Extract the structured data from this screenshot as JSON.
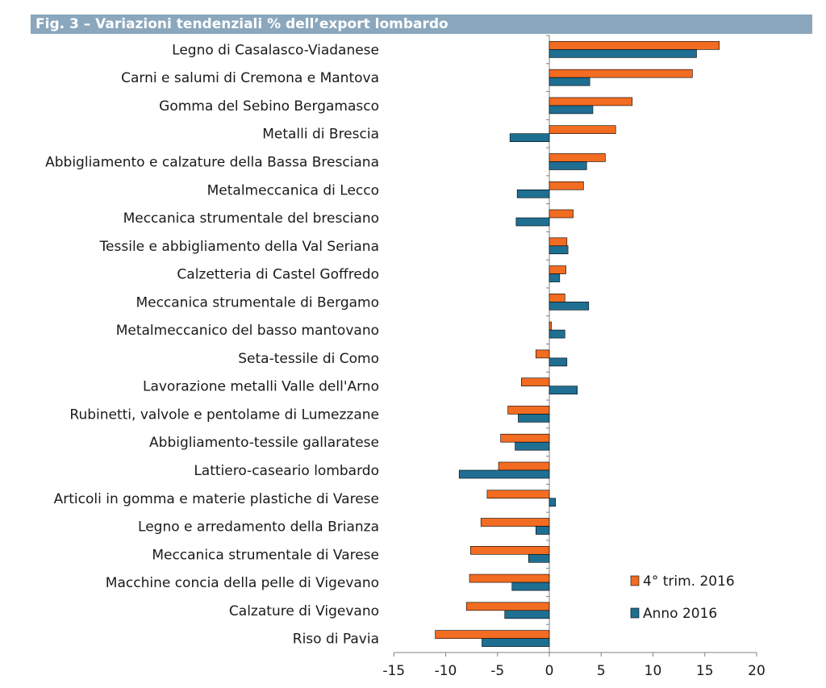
{
  "chart_data": {
    "type": "bar",
    "orientation": "horizontal",
    "title": "Fig. 3 – Variazioni tendenziali % dell’export lombardo",
    "categories": [
      "Legno di Casalasco-Viadanese",
      "Carni e salumi di Cremona e Mantova",
      "Gomma del Sebino Bergamasco",
      "Metalli di Brescia",
      "Abbigliamento e calzature della Bassa Bresciana",
      "Metalmeccanica di Lecco",
      "Meccanica strumentale del bresciano",
      "Tessile e abbigliamento della Val Seriana",
      "Calzetteria di Castel Goffredo",
      "Meccanica strumentale di Bergamo",
      "Metalmeccanico del basso mantovano",
      "Seta-tessile di Como",
      "Lavorazione metalli Valle dell'Arno",
      "Rubinetti, valvole e pentolame di Lumezzane",
      "Abbigliamento-tessile gallaratese",
      "Lattiero-caseario lombardo",
      "Articoli in gomma e materie plastiche di Varese",
      "Legno e arredamento della Brianza",
      "Meccanica strumentale di Varese",
      "Macchine concia della pelle di Vigevano",
      "Calzature di Vigevano",
      "Riso di Pavia"
    ],
    "series": [
      {
        "name": "4° trim. 2016",
        "color": "#f26c21",
        "values": [
          16.4,
          13.8,
          8.0,
          6.4,
          5.4,
          3.3,
          2.3,
          1.7,
          1.6,
          1.5,
          0.2,
          -1.3,
          -2.7,
          -4.0,
          -4.7,
          -4.9,
          -6.0,
          -6.6,
          -7.6,
          -7.7,
          -8.0,
          -11.0
        ]
      },
      {
        "name": "Anno 2016",
        "color": "#1f6f92",
        "values": [
          14.2,
          3.9,
          4.2,
          -3.8,
          3.6,
          -3.1,
          -3.2,
          1.8,
          1.0,
          3.8,
          1.5,
          1.7,
          2.7,
          -3.0,
          -3.3,
          -8.7,
          0.6,
          -1.3,
          -2.0,
          -3.6,
          -4.3,
          -6.5
        ]
      }
    ],
    "xlim": [
      -15,
      20
    ],
    "xticks": [
      "-15",
      "-10",
      "-5",
      "0",
      "5",
      "10",
      "15",
      "20"
    ],
    "grid": false,
    "legend_position": "bottom-right"
  }
}
